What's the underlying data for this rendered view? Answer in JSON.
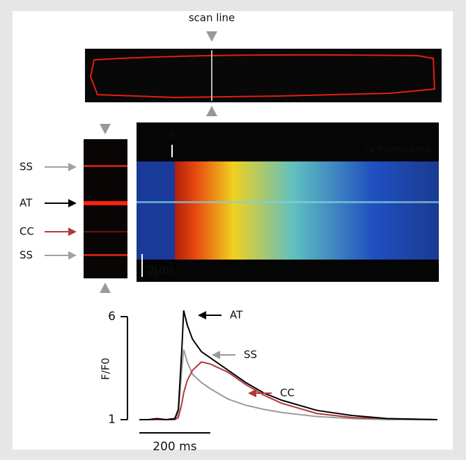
{
  "figure": {
    "scan_label": "scan line",
    "stim_label": "S",
    "image_label": "Ca fluorescence",
    "scale_label": "2μm",
    "side_labels": [
      {
        "text": "SS",
        "color": "#a0a0a0"
      },
      {
        "text": "AT",
        "color": "#000000"
      },
      {
        "text": "CC",
        "color": "#b03a3a"
      },
      {
        "text": "SS",
        "color": "#a0a0a0"
      }
    ]
  },
  "chart_data": {
    "type": "line",
    "y_label": "F/F0",
    "x": [
      0,
      25,
      50,
      75,
      100,
      110,
      120,
      125,
      135,
      150,
      175,
      200,
      250,
      300,
      350,
      400,
      500,
      600,
      700,
      840
    ],
    "xlim": [
      0,
      840
    ],
    "ylim": [
      1,
      6
    ],
    "yticks": [
      1,
      6
    ],
    "scale_bar": {
      "value": 200,
      "label": "200 ms"
    },
    "series": [
      {
        "name": "AT",
        "color": "#000000",
        "values": [
          1.0,
          1.0,
          1.05,
          1.0,
          1.05,
          1.5,
          4.5,
          6.3,
          5.6,
          4.9,
          4.3,
          4.0,
          3.4,
          2.8,
          2.3,
          1.95,
          1.45,
          1.2,
          1.05,
          1.0
        ]
      },
      {
        "name": "SS",
        "color": "#9a9a9a",
        "values": [
          1.0,
          1.0,
          1.0,
          1.0,
          1.0,
          1.3,
          3.5,
          4.4,
          3.8,
          3.2,
          2.8,
          2.5,
          2.0,
          1.7,
          1.5,
          1.35,
          1.15,
          1.05,
          1.0,
          1.0
        ]
      },
      {
        "name": "CC",
        "color": "#b03a3a",
        "values": [
          1.0,
          1.0,
          1.0,
          1.0,
          1.0,
          1.1,
          1.8,
          2.3,
          2.9,
          3.4,
          3.8,
          3.7,
          3.3,
          2.7,
          2.2,
          1.8,
          1.3,
          1.1,
          1.05,
          1.0
        ]
      }
    ]
  }
}
